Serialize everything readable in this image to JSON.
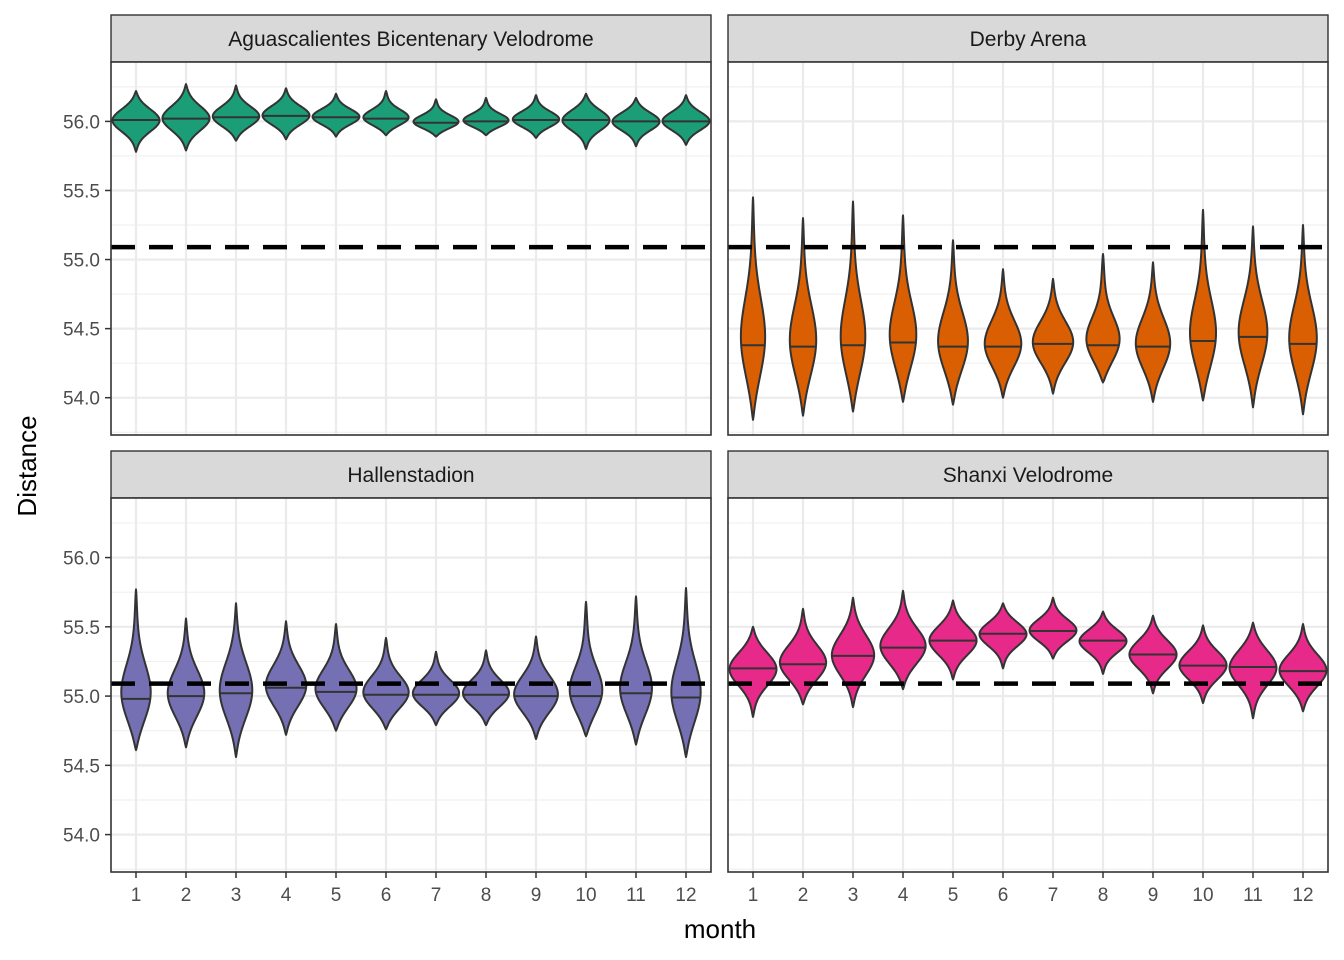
{
  "chart_data": {
    "type": "violin",
    "xlabel": "month",
    "ylabel": "Distance",
    "x_categories": [
      "1",
      "2",
      "3",
      "4",
      "5",
      "6",
      "7",
      "8",
      "9",
      "10",
      "11",
      "12"
    ],
    "ylim": [
      53.73,
      56.43
    ],
    "y_ticks": [
      54.0,
      54.5,
      55.0,
      55.5,
      56.0
    ],
    "y_tick_labels": [
      "54.0",
      "54.5",
      "55.0",
      "55.5",
      "56.0"
    ],
    "reference_line": {
      "y": 55.09,
      "style": "dashed"
    },
    "grid": true,
    "facets": [
      {
        "title": "Aguascalientes Bicentenary Velodrome",
        "color": "#1B9E77",
        "medians": [
          56.01,
          56.02,
          56.03,
          56.04,
          56.03,
          56.02,
          55.99,
          56.0,
          56.01,
          56.01,
          56.0,
          56.0
        ],
        "mins": [
          55.78,
          55.79,
          55.86,
          55.87,
          55.89,
          55.9,
          55.89,
          55.9,
          55.88,
          55.8,
          55.82,
          55.83
        ],
        "maxs": [
          56.22,
          56.27,
          56.26,
          56.24,
          56.2,
          56.22,
          56.16,
          56.17,
          56.19,
          56.2,
          56.17,
          56.19
        ]
      },
      {
        "title": "Derby Arena",
        "color": "#D95F02",
        "medians": [
          54.38,
          54.37,
          54.38,
          54.4,
          54.37,
          54.37,
          54.39,
          54.38,
          54.37,
          54.41,
          54.44,
          54.39
        ],
        "mins": [
          53.84,
          53.87,
          53.9,
          53.97,
          53.95,
          54.0,
          54.03,
          54.11,
          53.97,
          53.98,
          53.93,
          53.88
        ],
        "maxs": [
          55.45,
          55.3,
          55.42,
          55.32,
          55.14,
          54.93,
          54.86,
          55.04,
          54.98,
          55.36,
          55.24,
          55.25
        ]
      },
      {
        "title": "Hallenstadion",
        "color": "#7570B3",
        "medians": [
          54.98,
          55.0,
          55.02,
          55.06,
          55.03,
          55.01,
          55.01,
          55.01,
          55.0,
          55.0,
          55.02,
          54.99
        ],
        "mins": [
          54.61,
          54.63,
          54.56,
          54.72,
          54.75,
          54.76,
          54.79,
          54.79,
          54.69,
          54.71,
          54.65,
          54.56
        ],
        "maxs": [
          55.77,
          55.56,
          55.67,
          55.54,
          55.52,
          55.42,
          55.32,
          55.33,
          55.43,
          55.68,
          55.72,
          55.78
        ]
      },
      {
        "title": "Shanxi Velodrome",
        "color": "#E7298A",
        "medians": [
          55.2,
          55.23,
          55.29,
          55.35,
          55.4,
          55.45,
          55.47,
          55.4,
          55.3,
          55.22,
          55.21,
          55.18
        ],
        "mins": [
          54.85,
          54.94,
          54.92,
          55.05,
          55.12,
          55.2,
          55.27,
          55.16,
          55.02,
          54.95,
          54.84,
          54.89
        ],
        "maxs": [
          55.5,
          55.63,
          55.71,
          55.76,
          55.69,
          55.67,
          55.71,
          55.61,
          55.58,
          55.51,
          55.53,
          55.52
        ]
      }
    ]
  }
}
